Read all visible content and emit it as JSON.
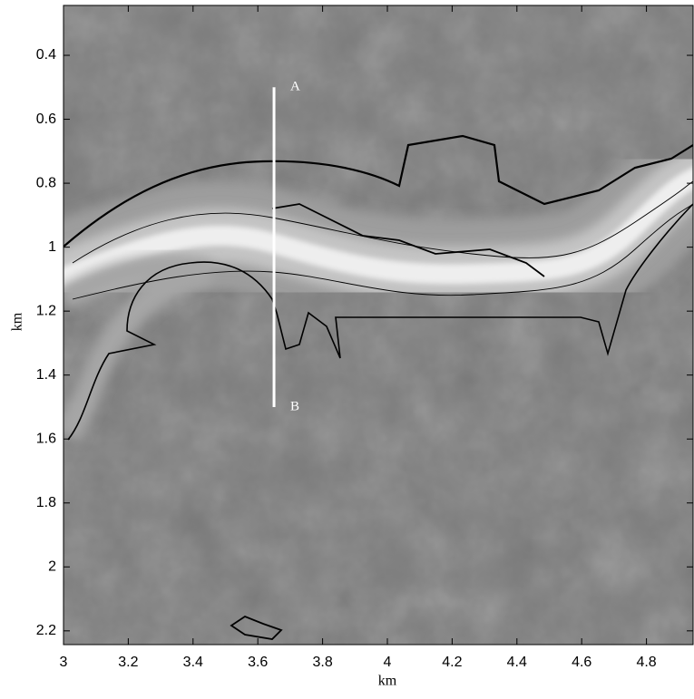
{
  "chart_data": {
    "type": "image",
    "xlabel": "km",
    "ylabel": "km",
    "xlim": [
      3,
      4.944
    ],
    "ylim": [
      0.244,
      2.243
    ],
    "y_reversed": true,
    "xticks": [
      3,
      3.2,
      3.4,
      3.6,
      3.8,
      4,
      4.2,
      4.4,
      4.6,
      4.8
    ],
    "yticks": [
      0.4,
      0.6,
      0.8,
      1,
      1.2,
      1.4,
      1.6,
      1.8,
      2,
      2.2
    ],
    "section_line": {
      "x": 3.65,
      "y": [
        0.5,
        1.5
      ],
      "labels": [
        "A",
        "B"
      ],
      "color": "#ffffff"
    }
  }
}
